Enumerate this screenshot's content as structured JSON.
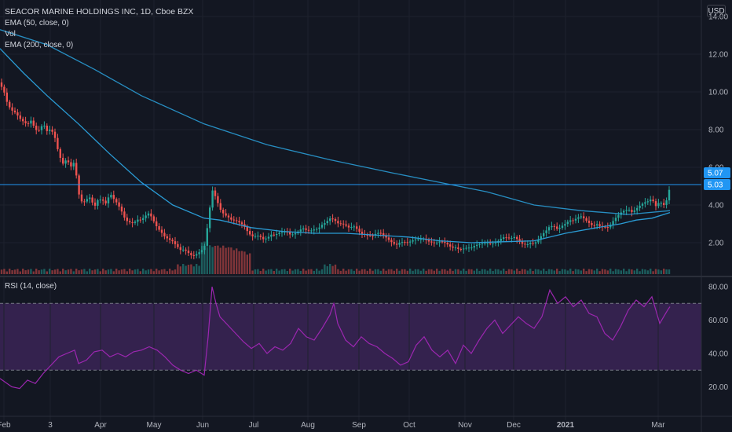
{
  "header": {
    "symbol_title": "SEACOR MARINE HOLDINGS INC, 1D, Cboe BZX",
    "indicators": [
      "EMA (50, close, 0)",
      "Vol",
      "EMA (200, close, 0)"
    ],
    "rsi_title": "RSI (14, close)",
    "currency": "USD"
  },
  "colors": {
    "background": "#131722",
    "up": "#26a69a",
    "down": "#ef5350",
    "ema": "#2a9bd4",
    "rsi": "#9c27b0",
    "rsi_band": "#3b2456",
    "last_price_line": "#2196f3"
  },
  "chart_data": [
    {
      "type": "candlestick",
      "title": "SEACOR MARINE HOLDINGS INC, 1D, Cboe BZX",
      "ylim": [
        0.5,
        14.8
      ],
      "yticks": [
        "2.00",
        "4.00",
        "6.00",
        "8.00",
        "10.00",
        "12.00",
        "14.00"
      ],
      "x_tick_labels": [
        "Feb",
        "3",
        "Apr",
        "May",
        "Jun",
        "Jul",
        "Aug",
        "Sep",
        "Oct",
        "Nov",
        "Dec",
        "2021",
        "Mar"
      ],
      "last_price_labels": [
        "5.07",
        "5.03"
      ],
      "close_path": [
        [
          0,
          10.5
        ],
        [
          5,
          10.0
        ],
        [
          10,
          9.2
        ],
        [
          15,
          8.9
        ],
        [
          20,
          8.8
        ],
        [
          25,
          8.6
        ],
        [
          30,
          8.5
        ],
        [
          35,
          8.4
        ],
        [
          40,
          8.6
        ],
        [
          45,
          8.0
        ],
        [
          50,
          7.9
        ],
        [
          55,
          8.2
        ],
        [
          60,
          7.8
        ],
        [
          65,
          8.0
        ],
        [
          70,
          7.6
        ],
        [
          75,
          6.8
        ],
        [
          80,
          6.3
        ],
        [
          85,
          6.5
        ],
        [
          90,
          6.0
        ],
        [
          95,
          6.2
        ],
        [
          100,
          4.5
        ],
        [
          105,
          4.0
        ],
        [
          110,
          4.3
        ],
        [
          115,
          4.5
        ],
        [
          120,
          4.0
        ],
        [
          125,
          4.4
        ],
        [
          130,
          4.3
        ],
        [
          135,
          4.0
        ],
        [
          140,
          4.5
        ],
        [
          145,
          4.2
        ],
        [
          150,
          4.0
        ],
        [
          155,
          3.7
        ],
        [
          160,
          3.3
        ],
        [
          165,
          3.2
        ],
        [
          170,
          3.1
        ],
        [
          175,
          3.2
        ],
        [
          180,
          3.1
        ],
        [
          185,
          3.3
        ],
        [
          190,
          3.5
        ],
        [
          195,
          3.2
        ],
        [
          200,
          2.9
        ],
        [
          205,
          2.7
        ],
        [
          210,
          2.4
        ],
        [
          215,
          2.2
        ],
        [
          220,
          2.0
        ],
        [
          225,
          1.7
        ],
        [
          230,
          1.5
        ],
        [
          235,
          1.6
        ],
        [
          240,
          1.5
        ],
        [
          245,
          1.4
        ],
        [
          250,
          1.5
        ],
        [
          255,
          1.6
        ],
        [
          260,
          1.7
        ],
        [
          265,
          3.0
        ],
        [
          270,
          4.7
        ],
        [
          275,
          4.3
        ],
        [
          280,
          3.8
        ],
        [
          285,
          3.6
        ],
        [
          290,
          3.5
        ],
        [
          295,
          3.3
        ],
        [
          300,
          3.2
        ],
        [
          305,
          3.0
        ],
        [
          310,
          2.8
        ],
        [
          315,
          2.5
        ],
        [
          320,
          2.3
        ],
        [
          325,
          2.4
        ],
        [
          330,
          2.5
        ],
        [
          335,
          2.3
        ],
        [
          340,
          2.3
        ],
        [
          345,
          2.4
        ],
        [
          350,
          2.3
        ],
        [
          355,
          2.4
        ],
        [
          360,
          2.5
        ],
        [
          365,
          2.6
        ],
        [
          370,
          2.5
        ],
        [
          375,
          2.6
        ],
        [
          380,
          2.7
        ],
        [
          385,
          2.8
        ],
        [
          390,
          2.6
        ],
        [
          395,
          2.5
        ],
        [
          400,
          2.6
        ],
        [
          405,
          2.7
        ],
        [
          410,
          3.0
        ],
        [
          415,
          3.2
        ],
        [
          420,
          3.4
        ],
        [
          425,
          3.3
        ],
        [
          430,
          3.0
        ],
        [
          435,
          2.9
        ],
        [
          440,
          2.8
        ],
        [
          445,
          2.7
        ],
        [
          450,
          2.9
        ],
        [
          455,
          2.8
        ],
        [
          460,
          2.6
        ],
        [
          465,
          2.5
        ],
        [
          470,
          2.4
        ],
        [
          475,
          2.3
        ],
        [
          480,
          2.4
        ],
        [
          485,
          2.4
        ],
        [
          490,
          2.3
        ],
        [
          495,
          2.2
        ],
        [
          500,
          2.1
        ],
        [
          505,
          2.0
        ],
        [
          510,
          2.1
        ],
        [
          515,
          2.0
        ],
        [
          520,
          1.9
        ],
        [
          525,
          2.0
        ],
        [
          530,
          2.1
        ],
        [
          535,
          2.2
        ],
        [
          540,
          2.3
        ],
        [
          545,
          2.2
        ],
        [
          550,
          2.1
        ],
        [
          555,
          2.0
        ],
        [
          560,
          2.0
        ],
        [
          565,
          1.9
        ],
        [
          570,
          1.8
        ],
        [
          575,
          1.7
        ],
        [
          580,
          1.8
        ],
        [
          585,
          1.75
        ],
        [
          590,
          1.8
        ],
        [
          595,
          1.8
        ],
        [
          600,
          1.7
        ],
        [
          605,
          1.75
        ],
        [
          610,
          1.8
        ],
        [
          615,
          1.9
        ],
        [
          620,
          2.0
        ],
        [
          625,
          2.05
        ],
        [
          630,
          2.1
        ],
        [
          635,
          2.2
        ],
        [
          640,
          2.3
        ],
        [
          645,
          2.2
        ],
        [
          650,
          2.1
        ],
        [
          655,
          2.2
        ],
        [
          660,
          2.1
        ],
        [
          665,
          2.0
        ],
        [
          670,
          2.0
        ],
        [
          675,
          2.1
        ],
        [
          680,
          2.0
        ],
        [
          685,
          2.1
        ],
        [
          690,
          2.3
        ],
        [
          695,
          2.5
        ],
        [
          700,
          2.8
        ],
        [
          705,
          2.9
        ],
        [
          710,
          2.8
        ],
        [
          715,
          3.0
        ],
        [
          720,
          3.1
        ],
        [
          725,
          3.2
        ],
        [
          730,
          3.1
        ],
        [
          735,
          3.2
        ],
        [
          740,
          3.3
        ],
        [
          745,
          3.2
        ],
        [
          750,
          3.1
        ],
        [
          755,
          3.0
        ],
        [
          760,
          3.1
        ],
        [
          765,
          2.9
        ],
        [
          770,
          2.8
        ],
        [
          775,
          2.7
        ],
        [
          780,
          3.0
        ],
        [
          785,
          3.3
        ],
        [
          790,
          3.6
        ],
        [
          795,
          3.8
        ],
        [
          800,
          3.9
        ],
        [
          805,
          3.7
        ],
        [
          810,
          3.8
        ],
        [
          815,
          3.9
        ],
        [
          820,
          4.0
        ],
        [
          825,
          4.1
        ],
        [
          830,
          4.3
        ],
        [
          835,
          4.0
        ],
        [
          840,
          4.3
        ],
        [
          845,
          4.1
        ],
        [
          850,
          4.4
        ],
        [
          853,
          5.03
        ]
      ],
      "ema50_path": [
        [
          0,
          12.3
        ],
        [
          30,
          11.0
        ],
        [
          60,
          9.8
        ],
        [
          100,
          8.3
        ],
        [
          140,
          6.7
        ],
        [
          180,
          5.2
        ],
        [
          220,
          4.0
        ],
        [
          260,
          3.3
        ],
        [
          280,
          3.2
        ],
        [
          300,
          3.0
        ],
        [
          320,
          2.8
        ],
        [
          360,
          2.6
        ],
        [
          400,
          2.5
        ],
        [
          440,
          2.5
        ],
        [
          480,
          2.4
        ],
        [
          520,
          2.3
        ],
        [
          560,
          2.1
        ],
        [
          600,
          2.0
        ],
        [
          640,
          2.05
        ],
        [
          680,
          2.1
        ],
        [
          720,
          2.5
        ],
        [
          760,
          2.8
        ],
        [
          790,
          3.0
        ],
        [
          810,
          3.2
        ],
        [
          830,
          3.3
        ],
        [
          853,
          3.6
        ]
      ],
      "ema200_path": [
        [
          0,
          13.3
        ],
        [
          60,
          12.5
        ],
        [
          120,
          11.2
        ],
        [
          180,
          9.8
        ],
        [
          260,
          8.3
        ],
        [
          340,
          7.2
        ],
        [
          420,
          6.4
        ],
        [
          500,
          5.7
        ],
        [
          560,
          5.2
        ],
        [
          620,
          4.7
        ],
        [
          680,
          4.0
        ],
        [
          740,
          3.7
        ],
        [
          800,
          3.5
        ],
        [
          853,
          3.7
        ]
      ]
    },
    {
      "type": "line",
      "title": "RSI (14, close)",
      "ylim": [
        10,
        85
      ],
      "yticks": [
        "20.00",
        "40.00",
        "60.00",
        "80.00"
      ],
      "bands": [
        30,
        70
      ],
      "values": [
        [
          0,
          25
        ],
        [
          15,
          20
        ],
        [
          25,
          19
        ],
        [
          35,
          24
        ],
        [
          45,
          22
        ],
        [
          55,
          28
        ],
        [
          65,
          33
        ],
        [
          75,
          38
        ],
        [
          85,
          40
        ],
        [
          95,
          42
        ],
        [
          100,
          34
        ],
        [
          110,
          36
        ],
        [
          120,
          41
        ],
        [
          130,
          42
        ],
        [
          140,
          38
        ],
        [
          150,
          40
        ],
        [
          160,
          38
        ],
        [
          170,
          41
        ],
        [
          180,
          42
        ],
        [
          190,
          44
        ],
        [
          200,
          42
        ],
        [
          210,
          38
        ],
        [
          220,
          33
        ],
        [
          230,
          30
        ],
        [
          240,
          28
        ],
        [
          250,
          30
        ],
        [
          260,
          27
        ],
        [
          265,
          50
        ],
        [
          270,
          80
        ],
        [
          275,
          70
        ],
        [
          280,
          62
        ],
        [
          290,
          57
        ],
        [
          300,
          52
        ],
        [
          310,
          47
        ],
        [
          320,
          43
        ],
        [
          330,
          46
        ],
        [
          340,
          40
        ],
        [
          350,
          44
        ],
        [
          360,
          42
        ],
        [
          370,
          46
        ],
        [
          380,
          55
        ],
        [
          390,
          50
        ],
        [
          400,
          48
        ],
        [
          410,
          55
        ],
        [
          420,
          63
        ],
        [
          425,
          70
        ],
        [
          430,
          58
        ],
        [
          440,
          48
        ],
        [
          450,
          44
        ],
        [
          460,
          50
        ],
        [
          470,
          46
        ],
        [
          480,
          44
        ],
        [
          490,
          40
        ],
        [
          500,
          37
        ],
        [
          510,
          33
        ],
        [
          520,
          35
        ],
        [
          530,
          45
        ],
        [
          540,
          50
        ],
        [
          550,
          42
        ],
        [
          560,
          38
        ],
        [
          570,
          42
        ],
        [
          580,
          34
        ],
        [
          590,
          45
        ],
        [
          600,
          40
        ],
        [
          610,
          48
        ],
        [
          620,
          55
        ],
        [
          630,
          60
        ],
        [
          640,
          52
        ],
        [
          650,
          57
        ],
        [
          660,
          62
        ],
        [
          670,
          58
        ],
        [
          680,
          55
        ],
        [
          690,
          62
        ],
        [
          700,
          78
        ],
        [
          710,
          70
        ],
        [
          720,
          74
        ],
        [
          730,
          68
        ],
        [
          740,
          72
        ],
        [
          750,
          64
        ],
        [
          760,
          62
        ],
        [
          770,
          52
        ],
        [
          780,
          48
        ],
        [
          790,
          56
        ],
        [
          800,
          66
        ],
        [
          810,
          72
        ],
        [
          820,
          68
        ],
        [
          830,
          74
        ],
        [
          840,
          58
        ],
        [
          850,
          66
        ],
        [
          853,
          68
        ]
      ]
    }
  ]
}
